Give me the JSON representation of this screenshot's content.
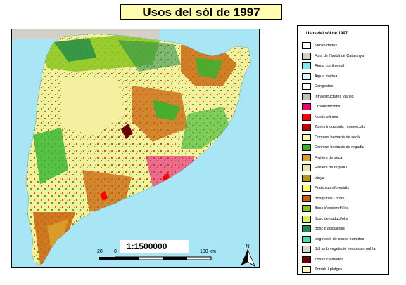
{
  "title": "Usos del sòl de 1997",
  "map": {
    "scale_ratio": "1:1500000",
    "scale_bar_labels": [
      "20",
      "0",
      "100 km"
    ],
    "north_label": "N",
    "sea_color": "#a9e6f5",
    "land_base_color": "#f5f0a0"
  },
  "legend": {
    "title": "Usos del sòl de 1997",
    "items": [
      {
        "label": "Sense dades",
        "color": "#ffffff"
      },
      {
        "label": "Fora de l'àmbit de Catalunya",
        "color": "#d4d0c8"
      },
      {
        "label": "Aigua continental",
        "color": "#7fe9f3"
      },
      {
        "label": "Aigua marina",
        "color": "#d6f6fb"
      },
      {
        "label": "Congestes",
        "color": "#ffffff"
      },
      {
        "label": "Infraestructures viàries",
        "color": "#c0bcb4"
      },
      {
        "label": "Urbanitzacions",
        "color": "#e6007a"
      },
      {
        "label": "Nuclis urbans",
        "color": "#ff0000"
      },
      {
        "label": "Zones industrials i comercials",
        "color": "#c00000"
      },
      {
        "label": "Conreus herbacis de secà",
        "color": "#fbf6a8"
      },
      {
        "label": "Conreus herbacis de regadiu",
        "color": "#2fb52f"
      },
      {
        "label": "Fruiters de secà",
        "color": "#d9a02c"
      },
      {
        "label": "Fruiters de regadiu",
        "color": "#e8e6a6"
      },
      {
        "label": "Vinya",
        "color": "#b3961a"
      },
      {
        "label": "Prats supraforestals",
        "color": "#ffff66"
      },
      {
        "label": "Bosquines i prats",
        "color": "#c8620a"
      },
      {
        "label": "Bosc d'esclerofil·les",
        "color": "#88c61a"
      },
      {
        "label": "Bosc de caducifolis",
        "color": "#d8f055"
      },
      {
        "label": "Bosc d'aciculifolis",
        "color": "#1e8a4a"
      },
      {
        "label": "Vegetació de zones humides",
        "color": "#4cd9a8"
      },
      {
        "label": "Sòl amb vegetació escassa o nul·la",
        "color": "#d8d8c8"
      },
      {
        "label": "Zones cremades",
        "color": "#6b0000"
      },
      {
        "label": "Sorrals i platges",
        "color": "#fff7c0"
      }
    ]
  }
}
